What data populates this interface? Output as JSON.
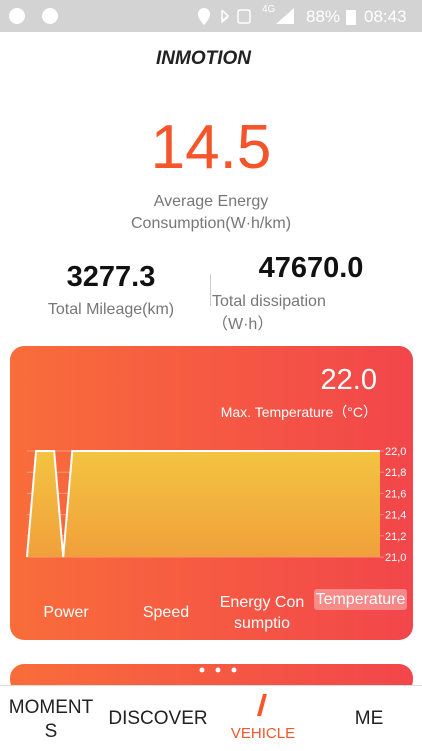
{
  "status_bar": {
    "network": "4G",
    "battery": "88%",
    "time": "08:43"
  },
  "header": {
    "logo": "INMOTION"
  },
  "summary": {
    "value": "14.5",
    "label": "Average Energy Consumption(W·h/km)"
  },
  "stats": [
    {
      "value": "3277.3",
      "label": "Total Mileage(km)"
    },
    {
      "value": "47670.0",
      "label": "Total dissipation（W·h）"
    }
  ],
  "card": {
    "value": "22.0",
    "label": "Max. Temperature（°C）",
    "chart": {
      "type": "area",
      "color": "#f3c441",
      "line_color": "#ffffff",
      "values": [
        21.0,
        22.0,
        22.0,
        22.0,
        21.0,
        22.0,
        22.0,
        22.0,
        22.0,
        22.0,
        22.0,
        22.0,
        22.0,
        22.0,
        22.0,
        22.0,
        22.0,
        22.0,
        22.0,
        22.0,
        22.0,
        22.0,
        22.0,
        22.0,
        22.0,
        22.0,
        22.0,
        22.0,
        22.0,
        22.0,
        22.0,
        22.0,
        22.0,
        22.0,
        22.0,
        22.0,
        22.0,
        22.0,
        22.0,
        22.0
      ],
      "ylim": [
        21.0,
        22.0
      ],
      "yticks": [
        {
          "value": 22.0,
          "label": "22,0"
        },
        {
          "value": 21.8,
          "label": "21,8"
        },
        {
          "value": 21.6,
          "label": "21,6"
        },
        {
          "value": 21.4,
          "label": "21,4"
        },
        {
          "value": 21.2,
          "label": "21,2"
        },
        {
          "value": 21.0,
          "label": "21,0"
        }
      ]
    },
    "tabs": [
      "Power",
      "Speed",
      "Energy Consumptio",
      "Temperature"
    ],
    "selected_tab": 3
  },
  "nav": {
    "items": [
      "MOMENTS",
      "DISCOVER",
      "VEHICLE",
      "ME"
    ],
    "active": 2
  }
}
